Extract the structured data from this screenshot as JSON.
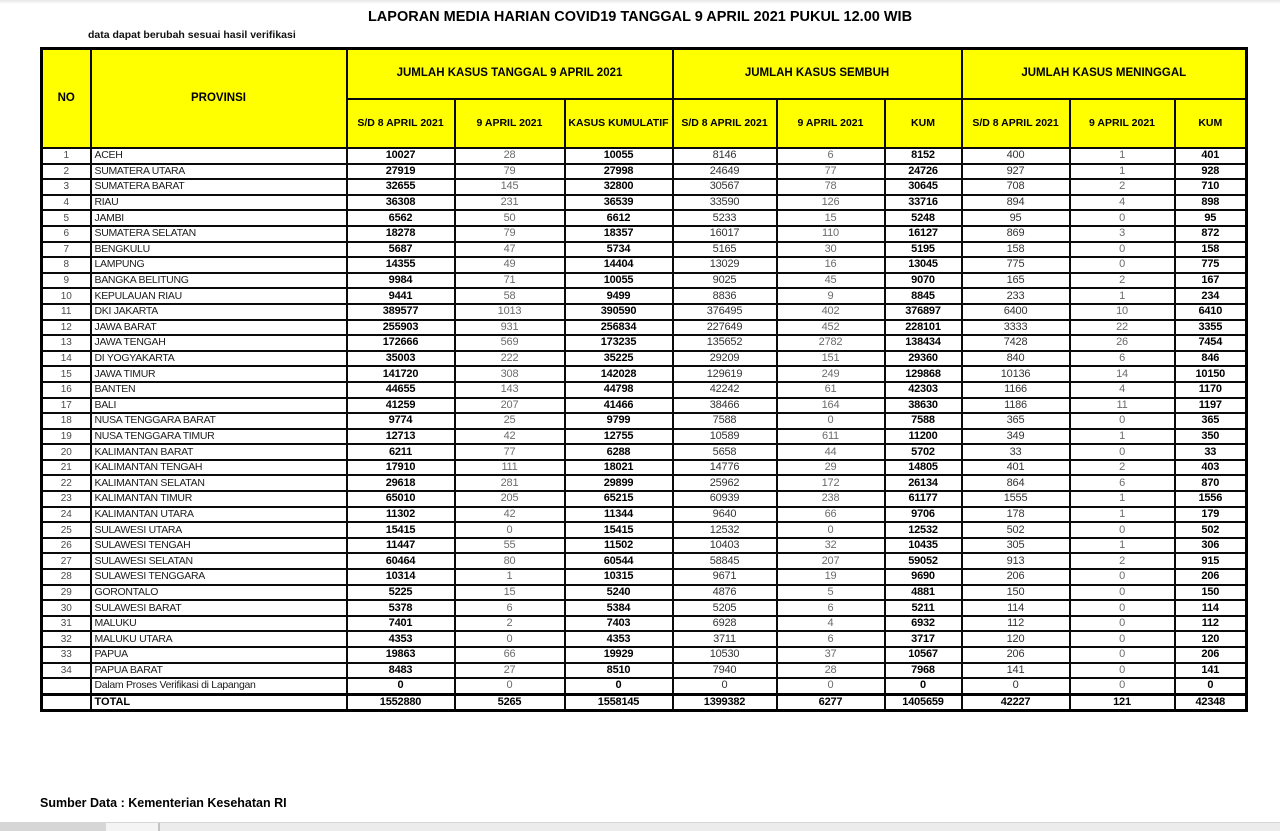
{
  "title": "LAPORAN MEDIA HARIAN COVID19 TANGGAL 9 APRIL 2021 PUKUL 12.00 WIB",
  "note": "data dapat berubah sesuai hasil verifikasi",
  "source": "Sumber Data : Kementerian Kesehatan RI",
  "colors": {
    "header_bg": "#ffff00",
    "border": "#000000"
  },
  "table": {
    "header": {
      "no": "NO",
      "provinsi": "PROVINSI"
    },
    "groups": [
      {
        "label": "JUMLAH KASUS TANGGAL 9 APRIL 2021",
        "cols": [
          "S/D 8 APRIL 2021",
          "9 APRIL 2021",
          "KASUS KUMULATIF"
        ]
      },
      {
        "label": "JUMLAH KASUS SEMBUH",
        "cols": [
          "S/D 8 APRIL 2021",
          "9 APRIL 2021",
          "KUM"
        ]
      },
      {
        "label": "JUMLAH KASUS MENINGGAL",
        "cols": [
          "S/D 8 APRIL 2021",
          "9 APRIL 2021",
          "KUM"
        ]
      }
    ],
    "rows": [
      {
        "no": "1",
        "provinsi": "ACEH",
        "values": [
          10027,
          28,
          10055,
          8146,
          6,
          8152,
          400,
          1,
          401
        ]
      },
      {
        "no": "2",
        "provinsi": "SUMATERA UTARA",
        "values": [
          27919,
          79,
          27998,
          24649,
          77,
          24726,
          927,
          1,
          928
        ]
      },
      {
        "no": "3",
        "provinsi": "SUMATERA BARAT",
        "values": [
          32655,
          145,
          32800,
          30567,
          78,
          30645,
          708,
          2,
          710
        ]
      },
      {
        "no": "4",
        "provinsi": "RIAU",
        "values": [
          36308,
          231,
          36539,
          33590,
          126,
          33716,
          894,
          4,
          898
        ]
      },
      {
        "no": "5",
        "provinsi": "JAMBI",
        "values": [
          6562,
          50,
          6612,
          5233,
          15,
          5248,
          95,
          0,
          95
        ]
      },
      {
        "no": "6",
        "provinsi": "SUMATERA SELATAN",
        "values": [
          18278,
          79,
          18357,
          16017,
          110,
          16127,
          869,
          3,
          872
        ]
      },
      {
        "no": "7",
        "provinsi": "BENGKULU",
        "values": [
          5687,
          47,
          5734,
          5165,
          30,
          5195,
          158,
          0,
          158
        ]
      },
      {
        "no": "8",
        "provinsi": "LAMPUNG",
        "values": [
          14355,
          49,
          14404,
          13029,
          16,
          13045,
          775,
          0,
          775
        ]
      },
      {
        "no": "9",
        "provinsi": "BANGKA BELITUNG",
        "values": [
          9984,
          71,
          10055,
          9025,
          45,
          9070,
          165,
          2,
          167
        ]
      },
      {
        "no": "10",
        "provinsi": "KEPULAUAN RIAU",
        "values": [
          9441,
          58,
          9499,
          8836,
          9,
          8845,
          233,
          1,
          234
        ]
      },
      {
        "no": "11",
        "provinsi": "DKI JAKARTA",
        "values": [
          389577,
          1013,
          390590,
          376495,
          402,
          376897,
          6400,
          10,
          6410
        ]
      },
      {
        "no": "12",
        "provinsi": "JAWA BARAT",
        "values": [
          255903,
          931,
          256834,
          227649,
          452,
          228101,
          3333,
          22,
          3355
        ]
      },
      {
        "no": "13",
        "provinsi": "JAWA TENGAH",
        "values": [
          172666,
          569,
          173235,
          135652,
          2782,
          138434,
          7428,
          26,
          7454
        ]
      },
      {
        "no": "14",
        "provinsi": "DI YOGYAKARTA",
        "values": [
          35003,
          222,
          35225,
          29209,
          151,
          29360,
          840,
          6,
          846
        ]
      },
      {
        "no": "15",
        "provinsi": "JAWA TIMUR",
        "values": [
          141720,
          308,
          142028,
          129619,
          249,
          129868,
          10136,
          14,
          10150
        ]
      },
      {
        "no": "16",
        "provinsi": "BANTEN",
        "values": [
          44655,
          143,
          44798,
          42242,
          61,
          42303,
          1166,
          4,
          1170
        ]
      },
      {
        "no": "17",
        "provinsi": "BALI",
        "values": [
          41259,
          207,
          41466,
          38466,
          164,
          38630,
          1186,
          11,
          1197
        ]
      },
      {
        "no": "18",
        "provinsi": "NUSA TENGGARA BARAT",
        "values": [
          9774,
          25,
          9799,
          7588,
          0,
          7588,
          365,
          0,
          365
        ]
      },
      {
        "no": "19",
        "provinsi": "NUSA TENGGARA TIMUR",
        "values": [
          12713,
          42,
          12755,
          10589,
          611,
          11200,
          349,
          1,
          350
        ]
      },
      {
        "no": "20",
        "provinsi": "KALIMANTAN BARAT",
        "values": [
          6211,
          77,
          6288,
          5658,
          44,
          5702,
          33,
          0,
          33
        ]
      },
      {
        "no": "21",
        "provinsi": "KALIMANTAN TENGAH",
        "values": [
          17910,
          111,
          18021,
          14776,
          29,
          14805,
          401,
          2,
          403
        ]
      },
      {
        "no": "22",
        "provinsi": "KALIMANTAN SELATAN",
        "values": [
          29618,
          281,
          29899,
          25962,
          172,
          26134,
          864,
          6,
          870
        ]
      },
      {
        "no": "23",
        "provinsi": "KALIMANTAN TIMUR",
        "values": [
          65010,
          205,
          65215,
          60939,
          238,
          61177,
          1555,
          1,
          1556
        ]
      },
      {
        "no": "24",
        "provinsi": "KALIMANTAN UTARA",
        "values": [
          11302,
          42,
          11344,
          9640,
          66,
          9706,
          178,
          1,
          179
        ]
      },
      {
        "no": "25",
        "provinsi": "SULAWESI UTARA",
        "values": [
          15415,
          0,
          15415,
          12532,
          0,
          12532,
          502,
          0,
          502
        ]
      },
      {
        "no": "26",
        "provinsi": "SULAWESI TENGAH",
        "values": [
          11447,
          55,
          11502,
          10403,
          32,
          10435,
          305,
          1,
          306
        ]
      },
      {
        "no": "27",
        "provinsi": "SULAWESI SELATAN",
        "values": [
          60464,
          80,
          60544,
          58845,
          207,
          59052,
          913,
          2,
          915
        ]
      },
      {
        "no": "28",
        "provinsi": "SULAWESI TENGGARA",
        "values": [
          10314,
          1,
          10315,
          9671,
          19,
          9690,
          206,
          0,
          206
        ]
      },
      {
        "no": "29",
        "provinsi": "GORONTALO",
        "values": [
          5225,
          15,
          5240,
          4876,
          5,
          4881,
          150,
          0,
          150
        ]
      },
      {
        "no": "30",
        "provinsi": "SULAWESI BARAT",
        "values": [
          5378,
          6,
          5384,
          5205,
          6,
          5211,
          114,
          0,
          114
        ]
      },
      {
        "no": "31",
        "provinsi": "MALUKU",
        "values": [
          7401,
          2,
          7403,
          6928,
          4,
          6932,
          112,
          0,
          112
        ]
      },
      {
        "no": "32",
        "provinsi": "MALUKU UTARA",
        "values": [
          4353,
          0,
          4353,
          3711,
          6,
          3717,
          120,
          0,
          120
        ]
      },
      {
        "no": "33",
        "provinsi": "PAPUA",
        "values": [
          19863,
          66,
          19929,
          10530,
          37,
          10567,
          206,
          0,
          206
        ]
      },
      {
        "no": "34",
        "provinsi": "PAPUA BARAT",
        "values": [
          8483,
          27,
          8510,
          7940,
          28,
          7968,
          141,
          0,
          141
        ]
      },
      {
        "no": "",
        "provinsi": "Dalam Proses Verifikasi di Lapangan",
        "values": [
          0,
          0,
          0,
          0,
          0,
          0,
          0,
          0,
          0
        ]
      }
    ],
    "total": {
      "label": "TOTAL",
      "values": [
        1552880,
        5265,
        1558145,
        1399382,
        6277,
        1405659,
        42227,
        121,
        42348
      ]
    }
  }
}
